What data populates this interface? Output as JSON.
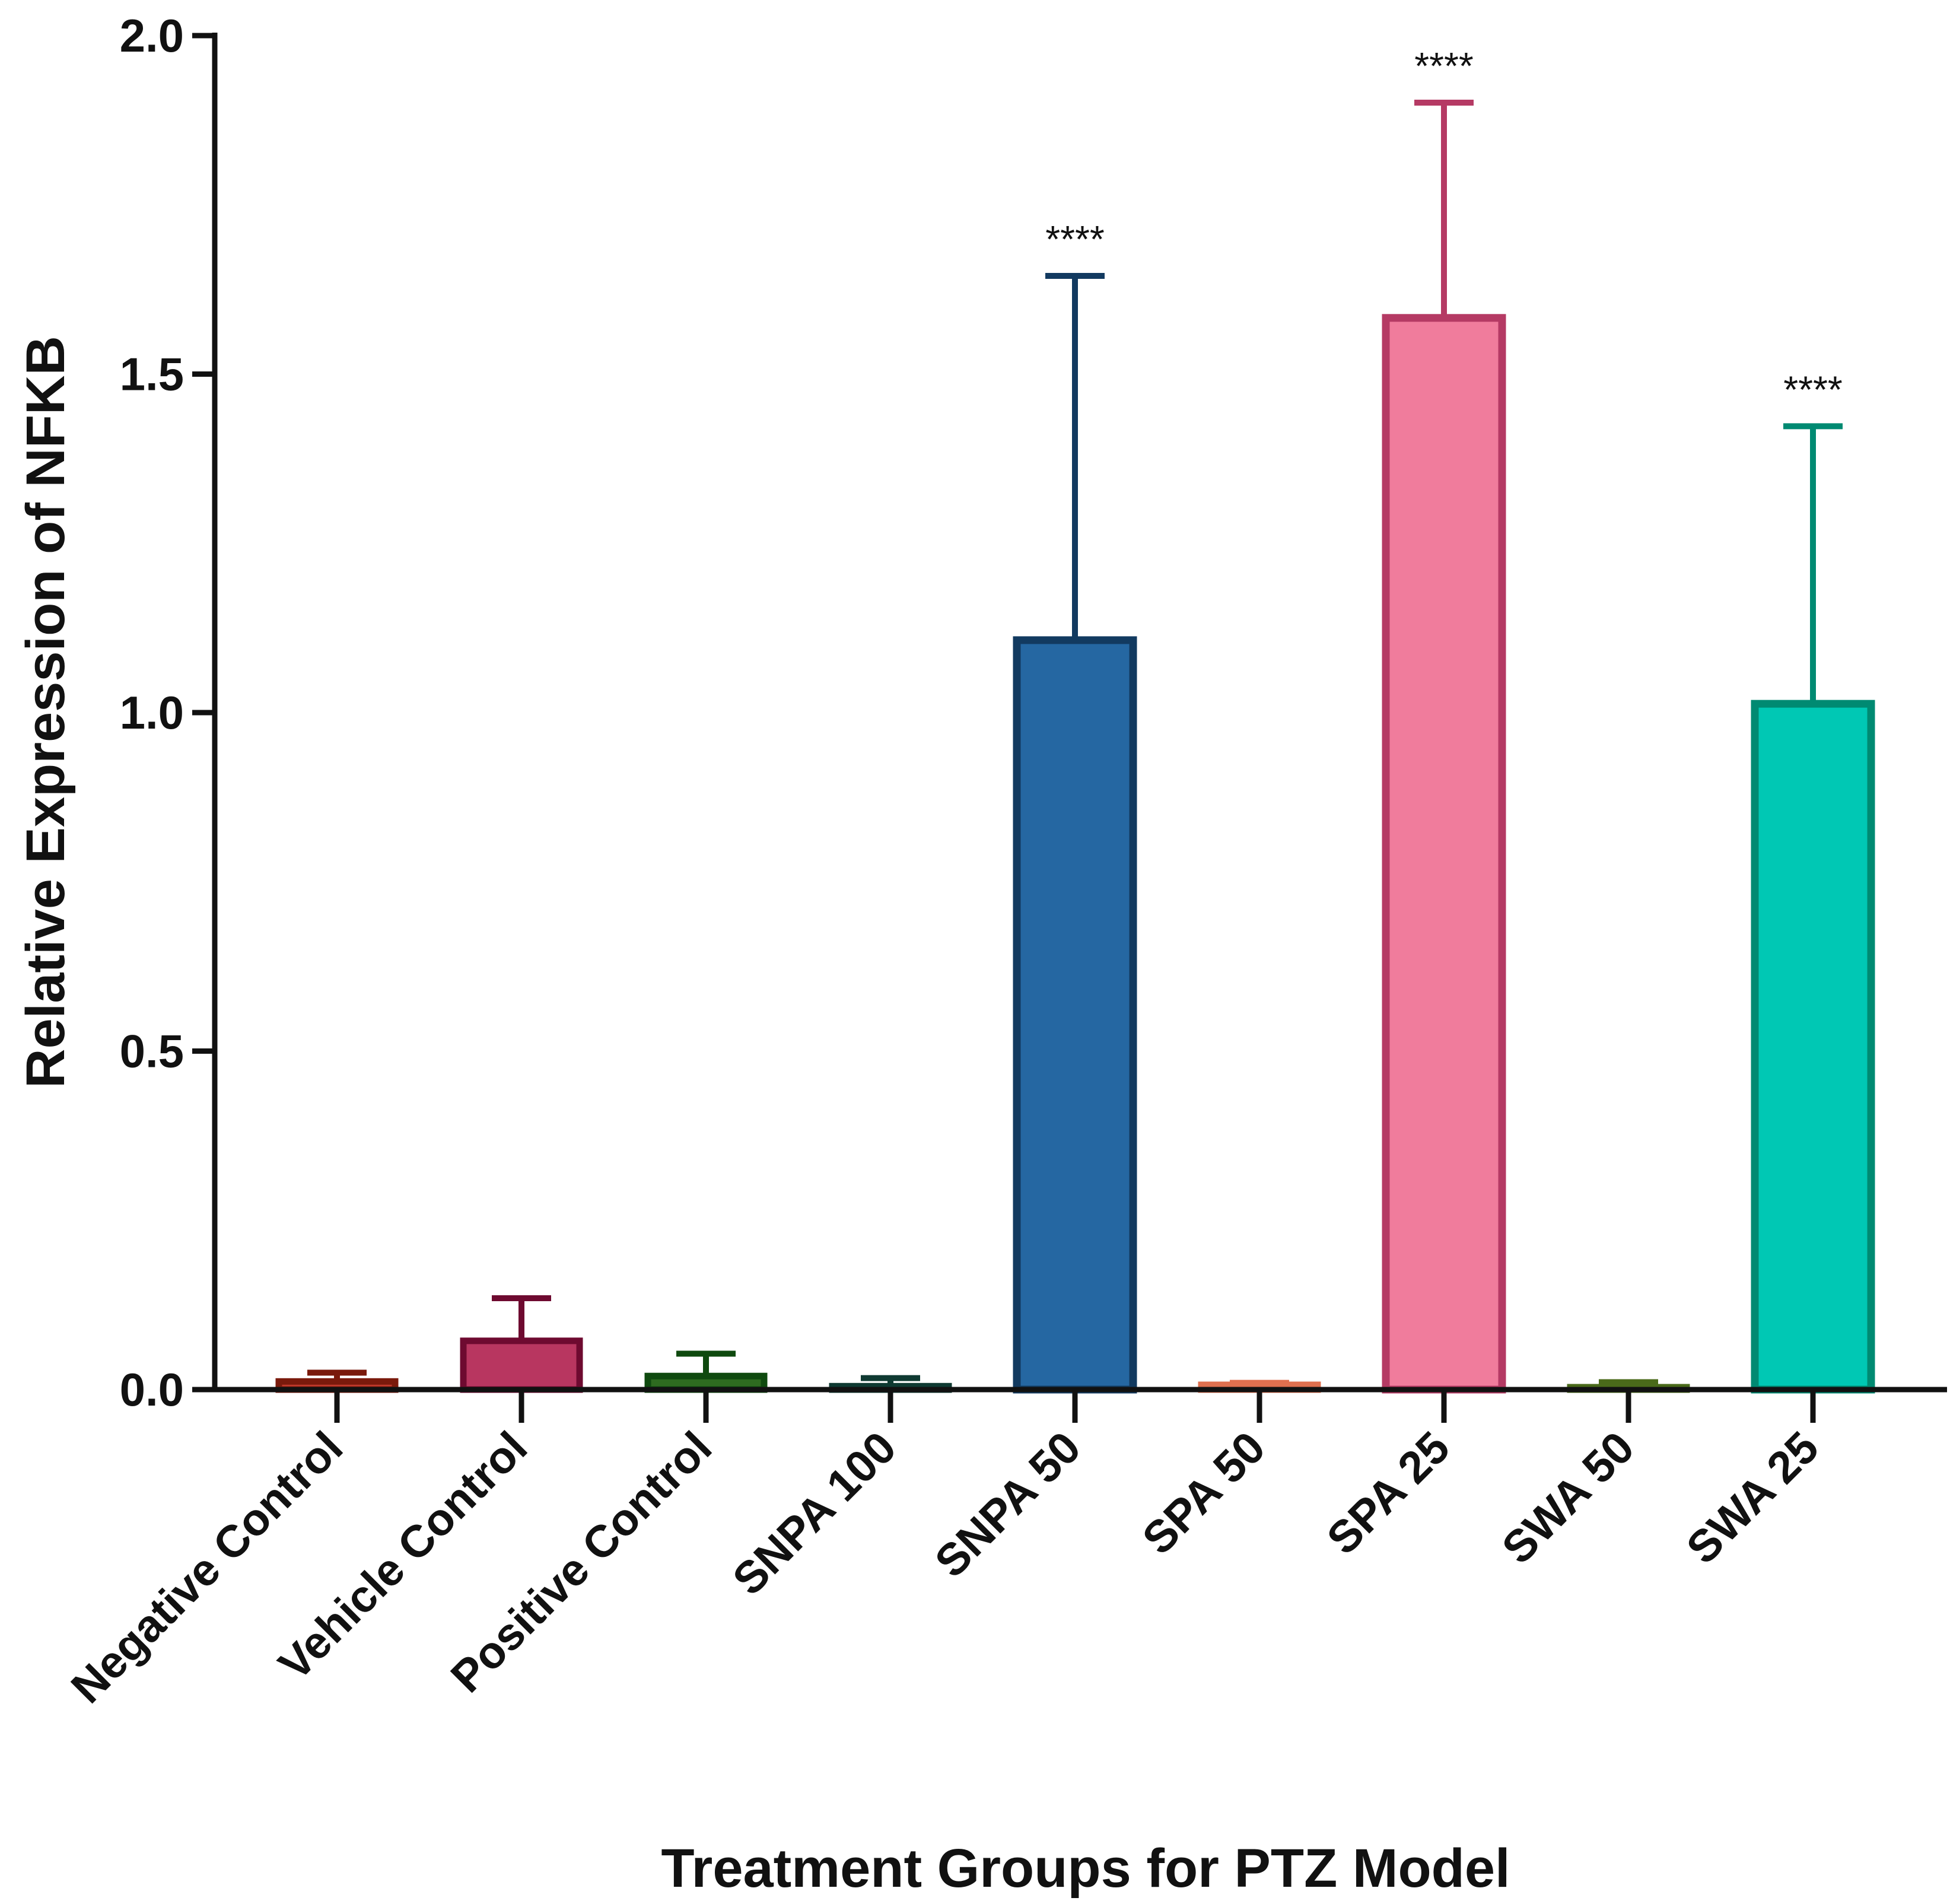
{
  "chart_data": {
    "type": "bar",
    "title": "",
    "xlabel": "Treatment Groups for PTZ Model",
    "ylabel": "Relative Expression of NFKB",
    "ylim": [
      0,
      2.0
    ],
    "yticks": [
      "0.0",
      "0.5",
      "1.0",
      "1.5",
      "2.0"
    ],
    "grid": false,
    "categories": [
      "Negative Control",
      "Vehicle Control",
      "Positive Control",
      "SNPA 100",
      "SNPA 50",
      "SPA 50",
      "SPA 25",
      "SWA 50",
      "SWA 25"
    ],
    "values": [
      0.012,
      0.072,
      0.02,
      0.005,
      1.107,
      0.007,
      1.583,
      0.003,
      1.013
    ],
    "errors": [
      0.013,
      0.063,
      0.033,
      0.012,
      0.538,
      0.003,
      0.318,
      0.008,
      0.41
    ],
    "significance": [
      "",
      "",
      "",
      "",
      "****",
      "",
      "****",
      "",
      "****"
    ],
    "colors": {
      "fill": [
        "#c0392b",
        "#b83660",
        "#2e6b20",
        "#1f4e46",
        "#2567a2",
        "#f08060",
        "#f07c9c",
        "#6a8f2a",
        "#00c8b4"
      ],
      "edge": [
        "#7a1a0c",
        "#6e0a30",
        "#0f4a0f",
        "#0f3a32",
        "#123a60",
        "#e0704f",
        "#b53a64",
        "#4a6a1a",
        "#008a72"
      ]
    }
  }
}
